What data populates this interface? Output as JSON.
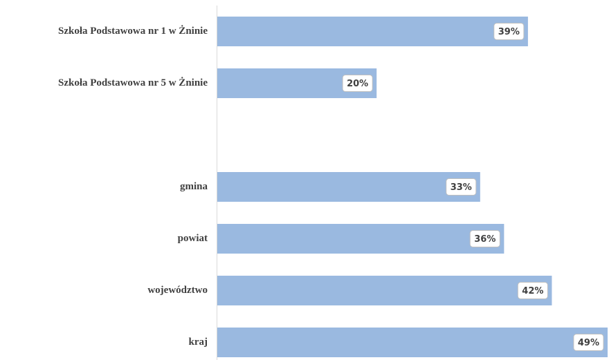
{
  "chart_data": {
    "type": "barh",
    "categories": [
      "Szkoła Podstawowa nr 1 w Żninie",
      "Szkoła Podstawowa nr 5 w Żninie",
      null,
      "gmina",
      "powiat",
      "województwo",
      "kraj"
    ],
    "values": [
      39,
      20,
      null,
      33,
      36,
      42,
      49
    ],
    "value_labels": [
      "39%",
      "20%",
      null,
      "33%",
      "36%",
      "42%",
      "49%"
    ],
    "color": "#9ab9e0",
    "xlim": [
      0,
      49
    ]
  }
}
